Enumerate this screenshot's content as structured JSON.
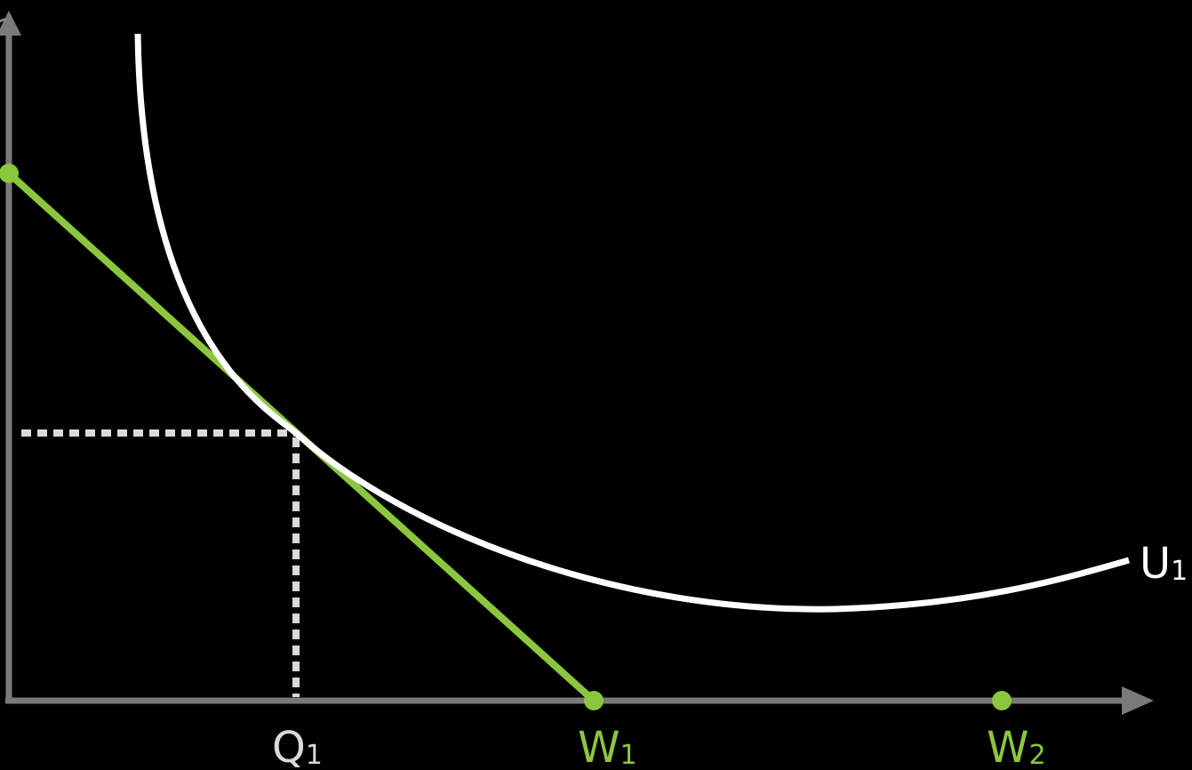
{
  "diagram": {
    "labels": {
      "q1": {
        "main": "Q",
        "sub": "1"
      },
      "w1": {
        "main": "W",
        "sub": "1"
      },
      "w2": {
        "main": "W",
        "sub": "2"
      },
      "u1": {
        "main": "U",
        "sub": "1"
      },
      "y_axis_partial": "r"
    },
    "colors": {
      "background": "#000000",
      "axis": "#7a7a7a",
      "budget_line": "#8cc63f",
      "curve": "#ffffff",
      "guides": "#d9d9d9",
      "q_label": "#d9d9d9",
      "w_label": "#8cc63f",
      "u_label": "#ffffff"
    }
  }
}
